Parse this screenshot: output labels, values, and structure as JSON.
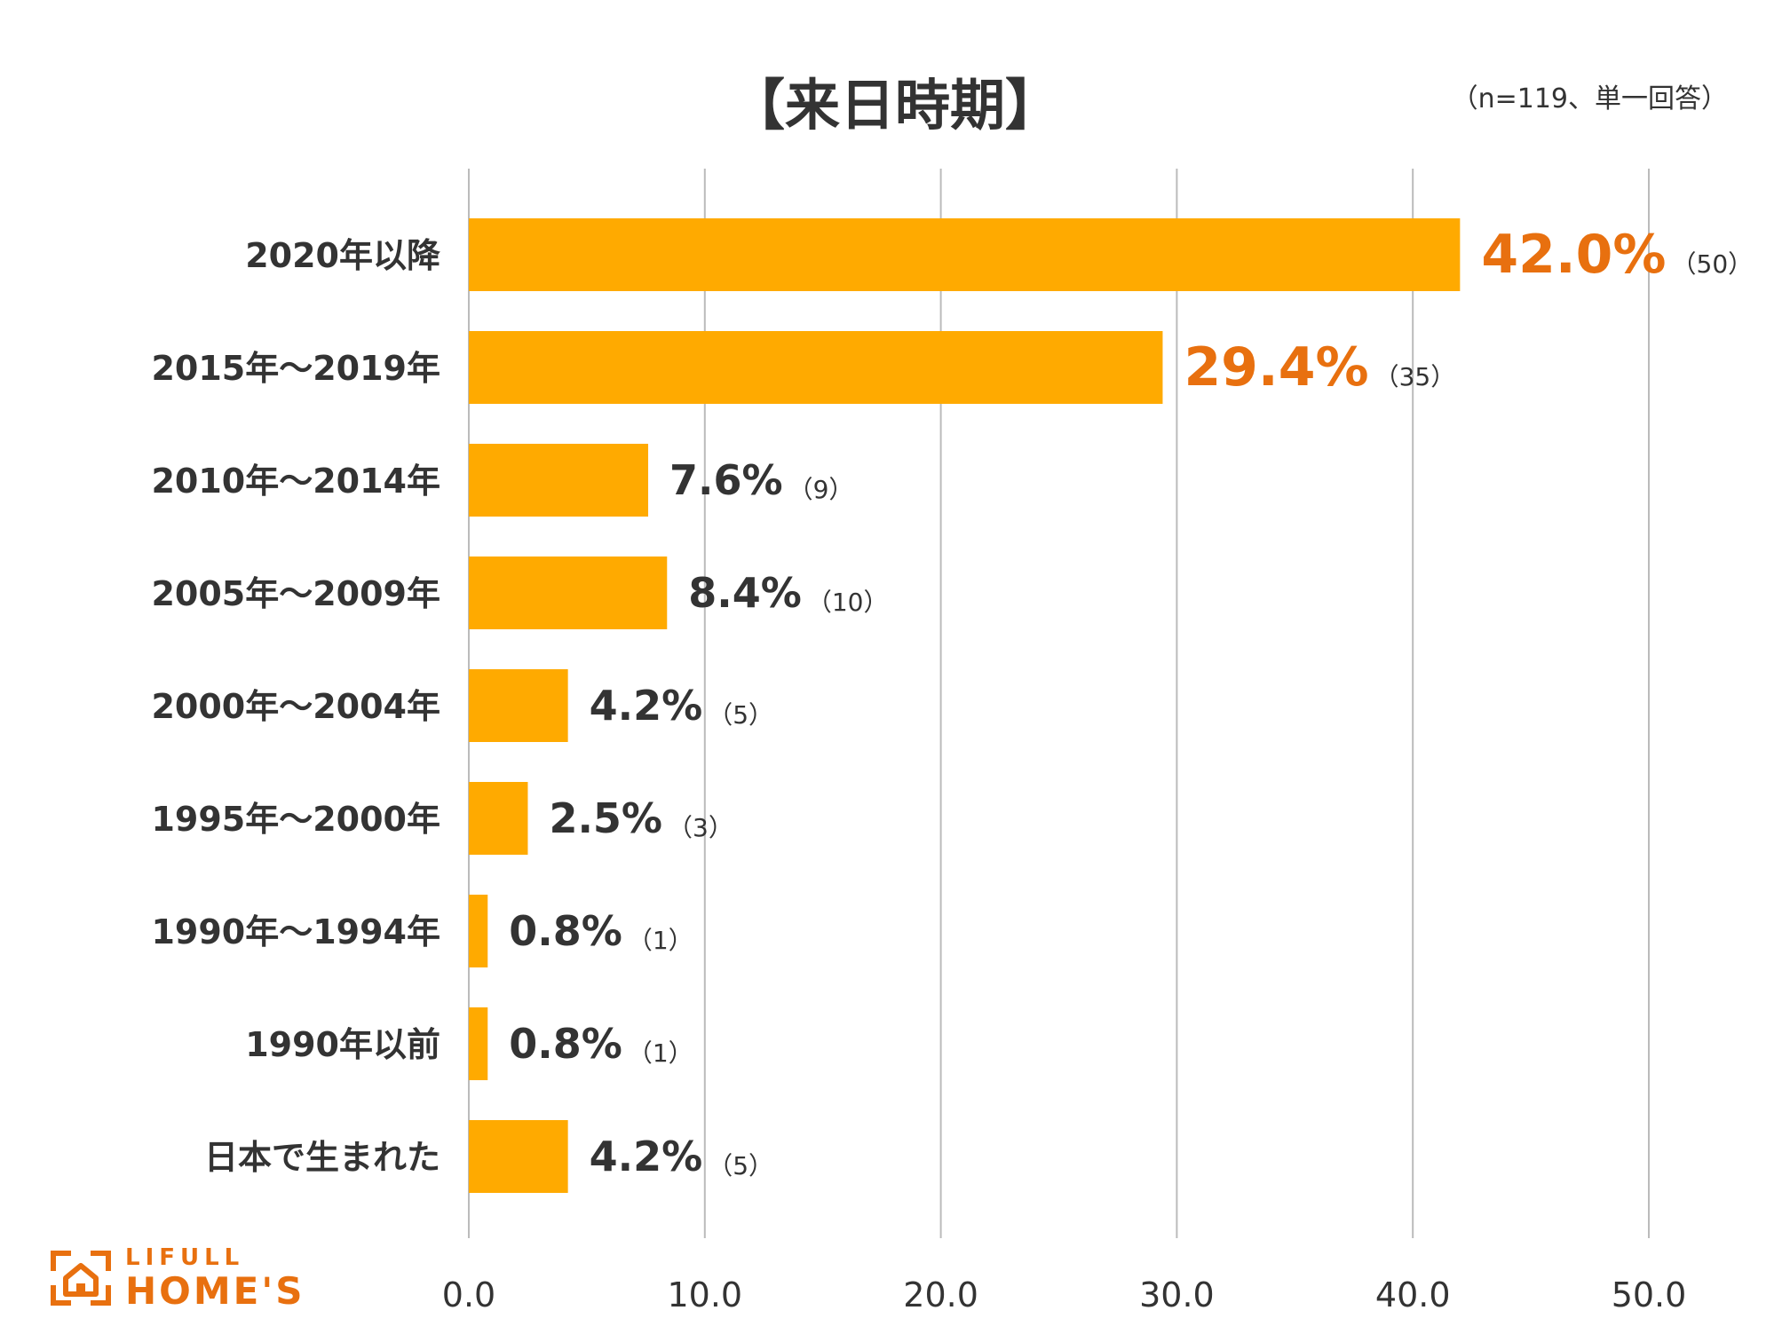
{
  "chart_data": {
    "type": "bar",
    "orientation": "horizontal",
    "title": "【来日時期】",
    "note": "（n=119、単一回答）",
    "categories": [
      "2020年以降",
      "2015年～2019年",
      "2010年～2014年",
      "2005年～2009年",
      "2000年～2004年",
      "1995年～2000年",
      "1990年～1994年",
      "1990年以前",
      "日本で生まれた"
    ],
    "values": [
      42.0,
      29.4,
      7.6,
      8.4,
      4.2,
      2.5,
      0.8,
      0.8,
      4.2
    ],
    "value_labels": [
      "42.0%",
      "29.4%",
      "7.6%",
      "8.4%",
      "4.2%",
      "2.5%",
      "0.8%",
      "0.8%",
      "4.2%"
    ],
    "count_labels": [
      "（50）",
      "（35）",
      "（9）",
      "（10）",
      "（5）",
      "（3）",
      "（1）",
      "（1）",
      "（5）"
    ],
    "highlight": [
      true,
      true,
      false,
      false,
      false,
      false,
      false,
      false,
      false
    ],
    "xlim": [
      0,
      50
    ],
    "xticks": [
      0,
      10,
      20,
      30,
      40,
      50
    ],
    "xtick_labels": [
      "0.0",
      "10.0",
      "20.0",
      "30.0",
      "40.0",
      "50.0"
    ],
    "grid": true,
    "colors": {
      "bar": "#ffaa00",
      "highlight_text": "#e8700f",
      "text": "#333333",
      "grid": "#bbbbbb"
    }
  },
  "logo": {
    "top": "LIFULL",
    "bottom": "HOME'S",
    "icon": "house-icon"
  }
}
